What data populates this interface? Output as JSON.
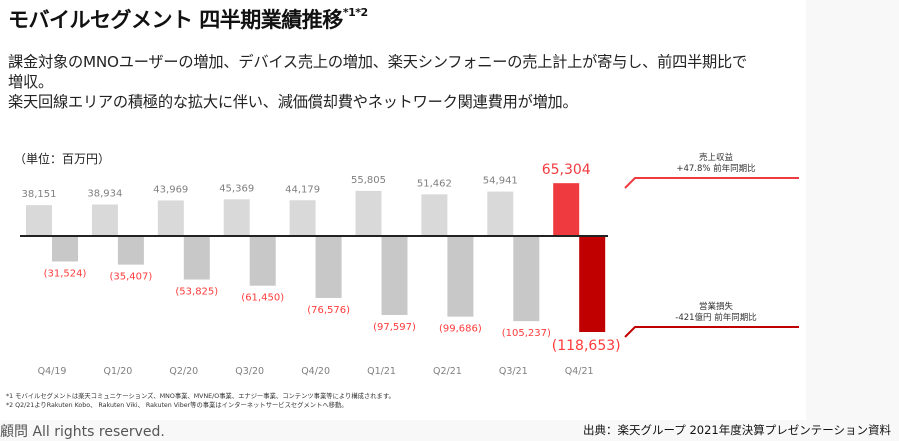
{
  "slide": {
    "title": "モバイルセグメント 四半期業績推移",
    "title_sup": "*1*2",
    "description_lines": [
      "課金対象のMNOユーザーの増加、デバイス売上の増加、楽天シンフォニーの売上計上が寄与し、前四半期比で",
      "増収。",
      "楽天回線エリアの積極的な拡大に伴い、減価償却費やネットワーク関連費用が増加。"
    ],
    "footnotes": [
      "*1 モバイルセグメントは楽天コミュニケーションズ、MNO事業、MVNE/O事業、エナジー事業、コンテンツ事業等により構成されます。",
      "*2 Q2/21よりRakuten Kobo、 Rakuten Viki、 Rakuten Viber等の事業はインターネットサービスセグメントへ移動。"
    ]
  },
  "footer": {
    "copyright": "顧問 All rights reserved.",
    "source": "出典：楽天グループ 2021年度決算プレゼンテーション資料"
  },
  "chart_data": {
    "type": "bar",
    "unit_label": "（単位：百万円）",
    "categories": [
      "Q4/19",
      "Q1/20",
      "Q2/20",
      "Q3/20",
      "Q4/20",
      "Q1/21",
      "Q2/21",
      "Q3/21",
      "Q4/21"
    ],
    "series": [
      {
        "name": "売上収益",
        "values": [
          38151,
          38934,
          43969,
          45369,
          44179,
          55805,
          51462,
          54941,
          65304
        ],
        "labels": [
          "38,151",
          "38,934",
          "43,969",
          "45,369",
          "44,179",
          "55,805",
          "51,462",
          "54,941",
          "65,304"
        ],
        "color": "#d9d9d9",
        "highlight_color": "#ef3b3f"
      },
      {
        "name": "営業損失",
        "values": [
          -31524,
          -35407,
          -53825,
          -61450,
          -76576,
          -97597,
          -99686,
          -105237,
          -118653
        ],
        "labels": [
          "(31,524)",
          "(35,407)",
          "(53,825)",
          "(61,450)",
          "(76,576)",
          "(97,597)",
          "(99,686)",
          "(105,237)",
          "(118,653)"
        ],
        "color": "#c8c8c8",
        "highlight_color": "#c00000"
      }
    ],
    "annotations": [
      {
        "title": "売上収益",
        "text": "+47.8% 前年同期比",
        "color": "#ef3b3f"
      },
      {
        "title": "営業損失",
        "text": "-421億円 前年同期比",
        "color": "#c00000"
      }
    ],
    "label_colors": {
      "revenue": "#7f7f7f",
      "revenue_highlight": "#ef3b3f",
      "loss": "#ff3b3b",
      "category": "#7f7f7f"
    },
    "ylim": [
      -120000,
      70000
    ]
  }
}
